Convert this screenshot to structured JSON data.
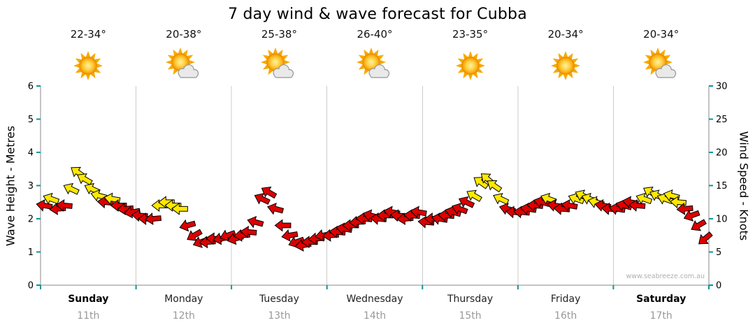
{
  "title": "7 day wind & wave forecast for Cubba",
  "watermark": "www.seabreeze.com.au",
  "axes": {
    "left_label": "Wave Height - Metres",
    "right_label": "Wind Speed - Knots",
    "left_ticks": [
      0,
      1,
      2,
      3,
      4,
      5,
      6
    ],
    "right_ticks": [
      0,
      5,
      10,
      15,
      20,
      25,
      30
    ],
    "left_range": [
      0,
      6
    ],
    "right_range": [
      0,
      30
    ]
  },
  "days": [
    {
      "name": "Sunday",
      "date": "11th",
      "temp": "22-34°",
      "icon": "sun",
      "weekend": true
    },
    {
      "name": "Monday",
      "date": "12th",
      "temp": "20-38°",
      "icon": "sun-cloud",
      "weekend": false
    },
    {
      "name": "Tuesday",
      "date": "13th",
      "temp": "25-38°",
      "icon": "sun-cloud",
      "weekend": false
    },
    {
      "name": "Wednesday",
      "date": "14th",
      "temp": "26-40°",
      "icon": "sun-cloud",
      "weekend": false
    },
    {
      "name": "Thursday",
      "date": "15th",
      "temp": "23-35°",
      "icon": "sun",
      "weekend": false
    },
    {
      "name": "Friday",
      "date": "16th",
      "temp": "20-34°",
      "icon": "sun",
      "weekend": false
    },
    {
      "name": "Saturday",
      "date": "17th",
      "temp": "20-34°",
      "icon": "sun-cloud",
      "weekend": true
    }
  ],
  "colors": {
    "arrow_red": "#DE0000",
    "arrow_yellow": "#FFE800",
    "tick": "#009999",
    "grid": "#CCCCCC",
    "axis": "#888888",
    "date_text": "#999999",
    "watermark": "#B0B0B0"
  },
  "chart_data": {
    "type": "scatter",
    "title": "7 day wind & wave forecast for Cubba",
    "x_axis": "time in days, 0 = start Sunday 11th through 7 = end Saturday 17th",
    "y_left": {
      "label": "Wave Height - Metres",
      "range": [
        0,
        6
      ]
    },
    "y_right": {
      "label": "Wind Speed - Knots",
      "range": [
        0,
        30
      ]
    },
    "legend": {
      "r": "red wind arrow (lighter wind)",
      "y": "yellow wind arrow (stronger wind)"
    },
    "wind_arrows": {
      "format": [
        "t_days",
        "wind_speed_knots",
        "arrow_direction_deg (0=right,180=left,cw)",
        "color r|y"
      ],
      "points": [
        [
          0.04,
          12,
          190,
          "r"
        ],
        [
          0.11,
          13,
          200,
          "y"
        ],
        [
          0.18,
          11.5,
          175,
          "r"
        ],
        [
          0.25,
          12,
          185,
          "r"
        ],
        [
          0.32,
          14.5,
          205,
          "y"
        ],
        [
          0.39,
          17,
          215,
          "y"
        ],
        [
          0.46,
          16,
          210,
          "y"
        ],
        [
          0.54,
          14.5,
          205,
          "y"
        ],
        [
          0.61,
          13.5,
          195,
          "y"
        ],
        [
          0.68,
          12.5,
          185,
          "r"
        ],
        [
          0.75,
          13,
          190,
          "y"
        ],
        [
          0.82,
          12,
          180,
          "r"
        ],
        [
          0.89,
          11.5,
          175,
          "r"
        ],
        [
          0.96,
          11,
          170,
          "r"
        ],
        [
          1.04,
          10.5,
          185,
          "r"
        ],
        [
          1.11,
          10,
          180,
          "r"
        ],
        [
          1.18,
          10,
          175,
          "r"
        ],
        [
          1.25,
          12,
          180,
          "y"
        ],
        [
          1.32,
          12.5,
          180,
          "y"
        ],
        [
          1.39,
          12,
          180,
          "y"
        ],
        [
          1.46,
          11.5,
          180,
          "y"
        ],
        [
          1.54,
          9,
          165,
          "r"
        ],
        [
          1.61,
          7.5,
          150,
          "r"
        ],
        [
          1.68,
          6.5,
          160,
          "r"
        ],
        [
          1.75,
          6.5,
          175,
          "r"
        ],
        [
          1.82,
          7,
          185,
          "r"
        ],
        [
          1.89,
          7,
          170,
          "r"
        ],
        [
          1.96,
          7.5,
          160,
          "r"
        ],
        [
          2.04,
          7,
          165,
          "r"
        ],
        [
          2.11,
          7.5,
          175,
          "r"
        ],
        [
          2.18,
          8,
          185,
          "r"
        ],
        [
          2.25,
          9.5,
          195,
          "r"
        ],
        [
          2.32,
          13,
          205,
          "r"
        ],
        [
          2.39,
          14,
          210,
          "r"
        ],
        [
          2.46,
          11.5,
          195,
          "r"
        ],
        [
          2.54,
          9,
          180,
          "r"
        ],
        [
          2.61,
          7.5,
          170,
          "r"
        ],
        [
          2.68,
          6.5,
          160,
          "r"
        ],
        [
          2.75,
          6,
          170,
          "r"
        ],
        [
          2.82,
          6.5,
          180,
          "r"
        ],
        [
          2.89,
          7,
          175,
          "r"
        ],
        [
          2.96,
          7.5,
          170,
          "r"
        ],
        [
          3.04,
          7.5,
          175,
          "r"
        ],
        [
          3.11,
          8,
          185,
          "r"
        ],
        [
          3.18,
          8.5,
          190,
          "r"
        ],
        [
          3.25,
          9,
          180,
          "r"
        ],
        [
          3.32,
          9.5,
          175,
          "r"
        ],
        [
          3.39,
          10,
          185,
          "r"
        ],
        [
          3.46,
          10.5,
          195,
          "r"
        ],
        [
          3.54,
          10,
          185,
          "r"
        ],
        [
          3.61,
          10.5,
          180,
          "r"
        ],
        [
          3.68,
          11,
          190,
          "r"
        ],
        [
          3.75,
          10.5,
          185,
          "r"
        ],
        [
          3.82,
          10,
          175,
          "r"
        ],
        [
          3.89,
          10.5,
          185,
          "r"
        ],
        [
          3.96,
          11,
          190,
          "r"
        ],
        [
          4.04,
          9.5,
          185,
          "r"
        ],
        [
          4.11,
          10,
          180,
          "r"
        ],
        [
          4.18,
          10,
          190,
          "r"
        ],
        [
          4.25,
          10.5,
          185,
          "r"
        ],
        [
          4.32,
          11,
          195,
          "r"
        ],
        [
          4.39,
          11.5,
          200,
          "r"
        ],
        [
          4.46,
          12.5,
          205,
          "r"
        ],
        [
          4.54,
          13.5,
          210,
          "y"
        ],
        [
          4.61,
          15.5,
          215,
          "y"
        ],
        [
          4.68,
          16,
          220,
          "y"
        ],
        [
          4.75,
          15,
          215,
          "y"
        ],
        [
          4.82,
          13,
          205,
          "y"
        ],
        [
          4.89,
          11.5,
          195,
          "r"
        ],
        [
          4.96,
          11,
          185,
          "r"
        ],
        [
          5.04,
          11,
          185,
          "r"
        ],
        [
          5.11,
          11.5,
          190,
          "r"
        ],
        [
          5.18,
          12,
          185,
          "r"
        ],
        [
          5.25,
          12.5,
          195,
          "r"
        ],
        [
          5.32,
          13,
          200,
          "y"
        ],
        [
          5.39,
          12,
          190,
          "r"
        ],
        [
          5.46,
          11.5,
          185,
          "r"
        ],
        [
          5.54,
          12,
          190,
          "r"
        ],
        [
          5.61,
          13,
          200,
          "y"
        ],
        [
          5.68,
          13.5,
          205,
          "y"
        ],
        [
          5.75,
          13,
          200,
          "y"
        ],
        [
          5.82,
          12.5,
          195,
          "y"
        ],
        [
          5.89,
          12,
          190,
          "r"
        ],
        [
          5.96,
          11.5,
          185,
          "r"
        ],
        [
          6.04,
          11.5,
          190,
          "r"
        ],
        [
          6.11,
          12,
          195,
          "r"
        ],
        [
          6.18,
          12.5,
          190,
          "r"
        ],
        [
          6.25,
          12,
          185,
          "r"
        ],
        [
          6.32,
          13,
          200,
          "y"
        ],
        [
          6.39,
          14,
          210,
          "y"
        ],
        [
          6.46,
          13.5,
          205,
          "y"
        ],
        [
          6.54,
          13,
          200,
          "y"
        ],
        [
          6.61,
          13.5,
          195,
          "y"
        ],
        [
          6.68,
          12.5,
          185,
          "y"
        ],
        [
          6.75,
          11.5,
          175,
          "r"
        ],
        [
          6.82,
          10.5,
          160,
          "r"
        ],
        [
          6.89,
          9,
          150,
          "r"
        ],
        [
          6.96,
          7,
          140,
          "r"
        ]
      ]
    }
  }
}
